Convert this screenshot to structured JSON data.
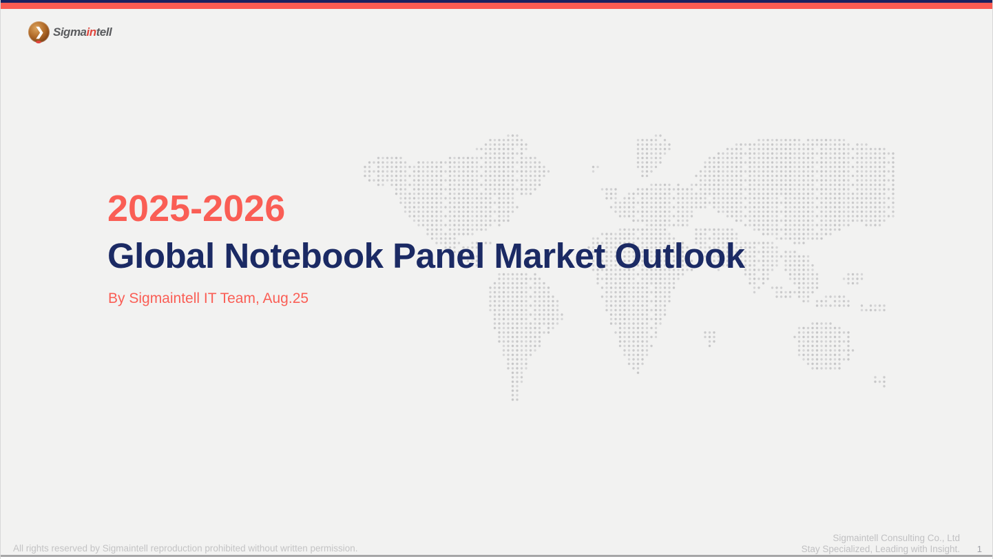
{
  "slide": {
    "title_years": "2025-2026",
    "title_main": "Global Notebook Panel Market Outlook",
    "subtitle": "By Sigmaintell IT Team, Aug.25"
  },
  "logo": {
    "text_sigma": "Sigma",
    "text_in": "in",
    "text_tell": "tell",
    "chevron_glyph": "❯"
  },
  "footer": {
    "left": "All rights reserved by Sigmaintell reproduction prohibited without written permission.",
    "right_line1": "Sigmaintell Consulting Co., Ltd",
    "right_line2": "Stay Specialized, Leading with Insight.",
    "page": "1"
  },
  "colors": {
    "accent_red": "#fb5b52",
    "title_red": "#fa5e55",
    "title_navy": "#1b2a64",
    "top_bar_navy": "#1a2160",
    "background": "#f2f2f1",
    "map_dot": "#c9c9ca",
    "footer_text": "#c3c3c4"
  },
  "map": {
    "description": "dotted-world-map"
  }
}
